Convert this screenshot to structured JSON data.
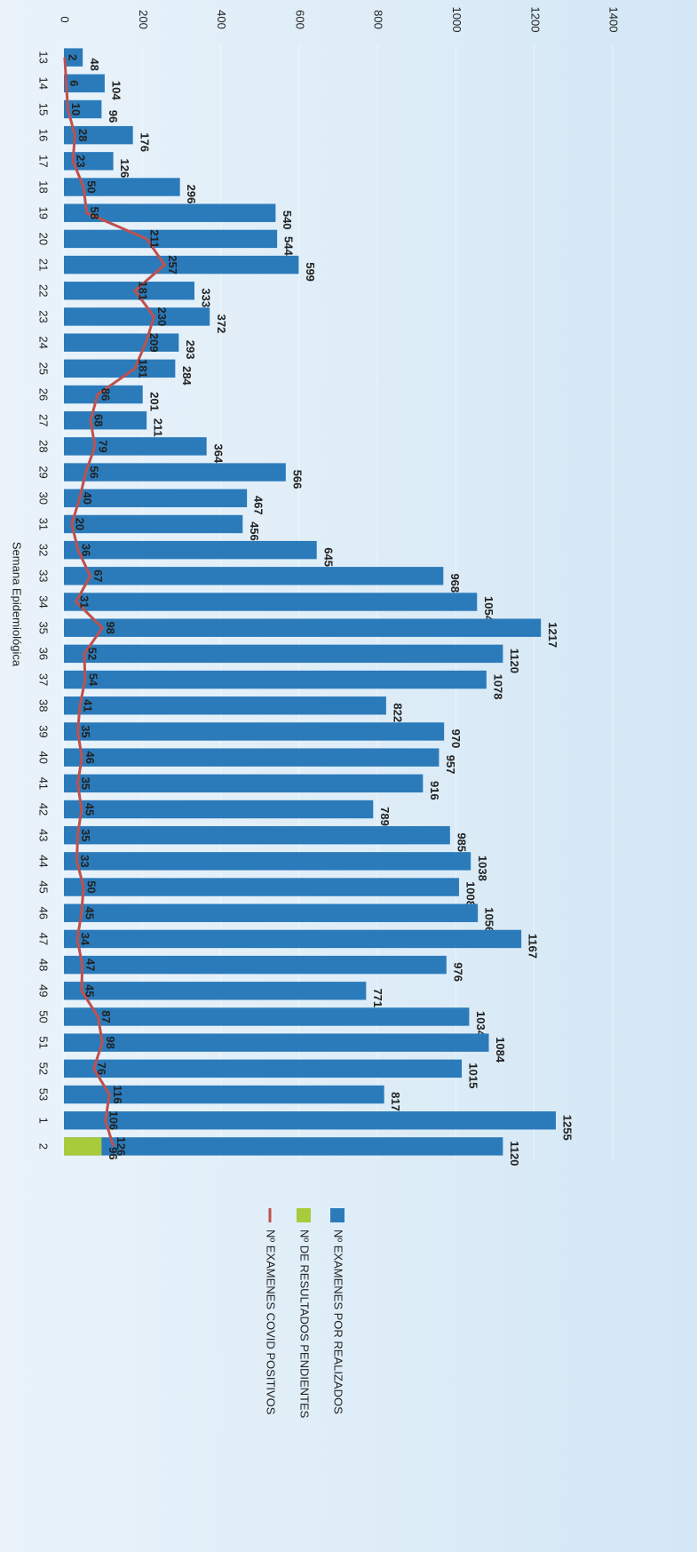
{
  "chart_data": {
    "type": "bar",
    "xlabel": "Semana Epidemiológica",
    "categories": [
      "13",
      "14",
      "15",
      "16",
      "17",
      "18",
      "19",
      "20",
      "21",
      "22",
      "23",
      "24",
      "25",
      "26",
      "27",
      "28",
      "29",
      "30",
      "31",
      "32",
      "33",
      "34",
      "35",
      "36",
      "37",
      "38",
      "39",
      "40",
      "41",
      "42",
      "43",
      "44",
      "45",
      "46",
      "47",
      "48",
      "49",
      "50",
      "51",
      "52",
      "53",
      "1",
      "2"
    ],
    "series": [
      {
        "name": "Nº EXAMENES POR REALIZADOS",
        "color": "#2b7bbb",
        "kind": "bar",
        "values": [
          48,
          104,
          96,
          176,
          126,
          296,
          540,
          544,
          599,
          333,
          372,
          293,
          284,
          201,
          211,
          364,
          566,
          467,
          456,
          645,
          968,
          1054,
          1217,
          1120,
          1078,
          822,
          970,
          957,
          916,
          789,
          985,
          1038,
          1008,
          1056,
          1167,
          976,
          771,
          1034,
          1084,
          1015,
          817,
          1255,
          1120
        ]
      },
      {
        "name": "Nº DE RESULTADOS PENDIENTES",
        "color": "#a8cb3c",
        "kind": "bar",
        "values": [
          null,
          null,
          null,
          null,
          null,
          null,
          null,
          null,
          null,
          null,
          null,
          null,
          null,
          null,
          null,
          null,
          null,
          null,
          null,
          null,
          null,
          null,
          null,
          null,
          null,
          null,
          null,
          null,
          null,
          null,
          null,
          null,
          null,
          null,
          null,
          null,
          null,
          null,
          null,
          null,
          null,
          null,
          96
        ]
      },
      {
        "name": "Nº EXAMENES COVID POSITIVOS",
        "color": "#c0504d",
        "kind": "line",
        "values": [
          2,
          6,
          10,
          28,
          23,
          50,
          58,
          211,
          257,
          181,
          230,
          209,
          181,
          86,
          68,
          79,
          56,
          40,
          20,
          36,
          67,
          31,
          98,
          52,
          54,
          41,
          35,
          46,
          35,
          45,
          35,
          33,
          50,
          45,
          34,
          47,
          45,
          87,
          98,
          76,
          116,
          106,
          126
        ]
      }
    ],
    "ylim": [
      0,
      1400
    ],
    "yticks": [
      0,
      200,
      400,
      600,
      800,
      1000,
      1200,
      1400
    ],
    "grid": true
  }
}
